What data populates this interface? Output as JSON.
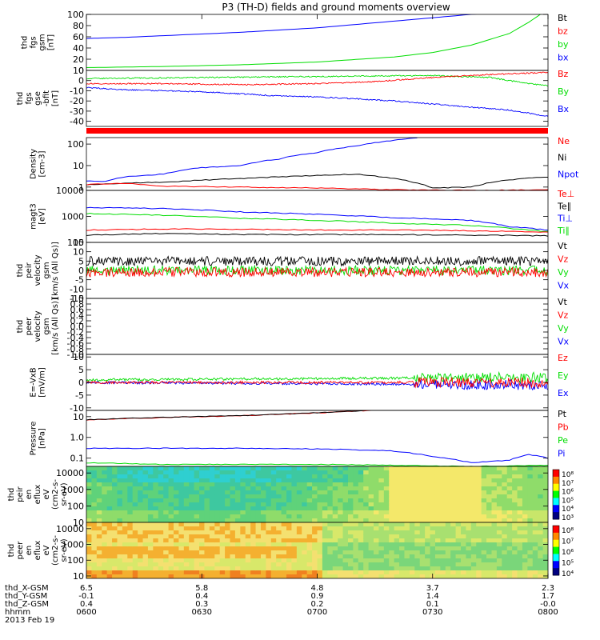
{
  "title": "P3 (TH-D) fields and ground moments overview",
  "colors": {
    "black": "#000000",
    "red": "#ff0000",
    "green": "#00dd00",
    "blue": "#0000ff"
  },
  "chart_data": {
    "type": "line",
    "x_axis": {
      "time_ticks": [
        "0600",
        "0630",
        "0700",
        "0730",
        "0800"
      ],
      "rows": [
        {
          "label": "thd_X-GSM",
          "values": [
            "6.5",
            "5.8",
            "4.8",
            "3.7",
            "2.3"
          ]
        },
        {
          "label": "thd_Y-GSM",
          "values": [
            "-0.1",
            "0.4",
            "0.9",
            "1.4",
            "1.7"
          ]
        },
        {
          "label": "thd_Z-GSM",
          "values": [
            "0.4",
            "0.3",
            "0.2",
            "0.1",
            "-0.0"
          ]
        },
        {
          "label": "hhmm",
          "values": [
            "0600",
            "0630",
            "0700",
            "0730",
            "0800"
          ]
        }
      ],
      "date": "2013 Feb 19"
    },
    "panels": [
      {
        "id": "p1",
        "ylabel_lines": [
          "thd",
          "fgs",
          "gsm",
          "[nT]"
        ],
        "scale": "linear",
        "ylim": [
          0,
          100
        ],
        "ticks": [
          {
            "v": 100,
            "l": "100"
          },
          {
            "v": 80,
            "l": "80"
          },
          {
            "v": 60,
            "l": "60"
          },
          {
            "v": 40,
            "l": "40"
          },
          {
            "v": 20,
            "l": "20"
          },
          {
            "v": 0,
            "l": "0"
          }
        ],
        "legend": [
          {
            "label": "Bt",
            "color": "#000000"
          },
          {
            "label": "bz",
            "color": "#ff0000"
          },
          {
            "label": "by",
            "color": "#00dd00"
          },
          {
            "label": "bx",
            "color": "#0000ff"
          }
        ],
        "series": [
          {
            "name": "bx",
            "color": "#0000ff",
            "x": [
              0,
              10,
              20,
              30,
              40,
              50,
              60,
              70,
              80,
              90,
              100,
              106
            ],
            "y": [
              57,
              59,
              62,
              65,
              68,
              72,
              76,
              82,
              88,
              94,
              100,
              103
            ]
          },
          {
            "name": "by",
            "color": "#00dd00",
            "x": [
              0,
              20,
              40,
              60,
              80,
              90,
              100,
              110,
              115,
              118
            ],
            "y": [
              5,
              7,
              10,
              15,
              24,
              32,
              45,
              66,
              86,
              100
            ]
          }
        ]
      },
      {
        "id": "p2",
        "ylabel_lines": [
          "thd",
          "fgs",
          "gse",
          "-bfit",
          "[nT]"
        ],
        "scale": "linear",
        "ylim": [
          -45,
          10
        ],
        "ticks": [
          {
            "v": 10,
            "l": "10"
          },
          {
            "v": 0,
            "l": "0"
          },
          {
            "v": -10,
            "l": "-10"
          },
          {
            "v": -20,
            "l": "-20"
          },
          {
            "v": -30,
            "l": "-30"
          },
          {
            "v": -40,
            "l": "-40"
          }
        ],
        "legend": [
          {
            "label": "Bz",
            "color": "#ff0000"
          },
          {
            "label": "By",
            "color": "#00dd00"
          },
          {
            "label": "Bx",
            "color": "#0000ff"
          }
        ],
        "series": [
          {
            "name": "By",
            "color": "#00dd00",
            "x": [
              0,
              30,
              60,
              90,
              105,
              110,
              115,
              120
            ],
            "y": [
              2,
              3,
              4,
              5,
              3,
              0,
              -3,
              -5
            ]
          },
          {
            "name": "Bz",
            "color": "#ff0000",
            "x": [
              0,
              20,
              40,
              60,
              75,
              90,
              105,
              120
            ],
            "y": [
              -3,
              -3,
              -4,
              -3,
              -1,
              3,
              6,
              8
            ]
          },
          {
            "name": "Bx",
            "color": "#0000ff",
            "x": [
              0,
              10,
              20,
              30,
              40,
              50,
              60,
              70,
              80,
              90,
              100,
              110,
              120
            ],
            "y": [
              -7,
              -9,
              -10,
              -11,
              -13,
              -15,
              -16,
              -18,
              -20,
              -23,
              -26,
              -29,
              -35
            ]
          }
        ]
      },
      {
        "id": "p4",
        "ylabel_lines": [
          "Density",
          "[cm-3]"
        ],
        "scale": "log",
        "ylim": [
          0.7,
          200
        ],
        "ticks": [
          {
            "v": 100,
            "l": "100"
          },
          {
            "v": 10,
            "l": "10"
          },
          {
            "v": 1,
            "l": "1"
          }
        ],
        "legend": [
          {
            "label": "Ne",
            "color": "#ff0000"
          },
          {
            "label": "Ni",
            "color": "#000000"
          },
          {
            "label": "Npot",
            "color": "#0000ff"
          }
        ],
        "series": [
          {
            "name": "Npot",
            "color": "#0000ff",
            "x": [
              0,
              5,
              10,
              15,
              20,
              30,
              40,
              50,
              60,
              70,
              80,
              86
            ],
            "y": [
              2.0,
              1.8,
              3.0,
              3.5,
              4.0,
              8,
              10,
              20,
              40,
              80,
              150,
              200
            ]
          },
          {
            "name": "Ni",
            "color": "#000000",
            "x": [
              0,
              20,
              40,
              60,
              70,
              80,
              90,
              100,
              110,
              120
            ],
            "y": [
              1.3,
              1.7,
              2.5,
              3.5,
              4.0,
              2.5,
              0.9,
              1.0,
              2.2,
              3.0
            ]
          },
          {
            "name": "Ne",
            "color": "#ff0000",
            "x": [
              0,
              10,
              20,
              40,
              60,
              80,
              100,
              120
            ],
            "y": [
              1.3,
              1.5,
              1.1,
              1.0,
              0.9,
              0.75,
              0.7,
              0.75
            ]
          }
        ]
      },
      {
        "id": "p5",
        "ylabel_lines": [
          "magt3",
          "[eV]"
        ],
        "scale": "log",
        "ylim": [
          100,
          10000
        ],
        "ticks": [
          {
            "v": 10000,
            "l": "10000"
          },
          {
            "v": 1000,
            "l": "1000"
          },
          {
            "v": 100,
            "l": "100"
          }
        ],
        "legend": [
          {
            "label": "Te⊥",
            "color": "#ff0000"
          },
          {
            "label": "Te∥",
            "color": "#000000"
          },
          {
            "label": "Ti⊥",
            "color": "#0000ff"
          },
          {
            "label": "Ti∥",
            "color": "#00dd00"
          }
        ],
        "series": [
          {
            "name": "Ti⊥",
            "color": "#0000ff",
            "x": [
              0,
              20,
              40,
              60,
              80,
              100,
              110,
              120
            ],
            "y": [
              2200,
              2000,
              1500,
              1200,
              900,
              700,
              400,
              300
            ]
          },
          {
            "name": "Ti∥",
            "color": "#00dd00",
            "x": [
              0,
              20,
              40,
              60,
              80,
              100,
              110,
              120
            ],
            "y": [
              1300,
              1100,
              850,
              700,
              550,
              450,
              350,
              260
            ]
          },
          {
            "name": "Te⊥",
            "color": "#ff0000",
            "x": [
              0,
              20,
              40,
              60,
              80,
              100,
              120
            ],
            "y": [
              300,
              330,
              320,
              300,
              300,
              280,
              250
            ]
          },
          {
            "name": "Te∥",
            "color": "#000000",
            "x": [
              0,
              20,
              40,
              60,
              80,
              100,
              120
            ],
            "y": [
              190,
              220,
              200,
              200,
              200,
              190,
              180
            ]
          }
        ]
      },
      {
        "id": "p6",
        "ylabel_lines": [
          "thd",
          "peir",
          "velocity",
          "gsm",
          "[km/s (All Qs)]"
        ],
        "scale": "linear",
        "ylim": [
          -15,
          15
        ],
        "ticks": [
          {
            "v": 15,
            "l": "15"
          },
          {
            "v": 10,
            "l": "10"
          },
          {
            "v": 5,
            "l": "5"
          },
          {
            "v": 0,
            "l": "0"
          },
          {
            "v": -5,
            "l": "-5"
          },
          {
            "v": -10,
            "l": "-10"
          },
          {
            "v": -15,
            "l": "-15"
          }
        ],
        "legend": [
          {
            "label": "Vt",
            "color": "#000000"
          },
          {
            "label": "Vz",
            "color": "#ff0000"
          },
          {
            "label": "Vy",
            "color": "#00dd00"
          },
          {
            "label": "Vx",
            "color": "#0000ff"
          }
        ],
        "series": [
          {
            "name": "Vy",
            "color": "#00dd00",
            "x": [
              0,
              120
            ],
            "y": [
              0,
              0
            ]
          },
          {
            "name": "Vt",
            "color": "#000000",
            "x": [
              0,
              120
            ],
            "y": [
              5,
              5
            ]
          },
          {
            "name": "Vz",
            "color": "#ff0000",
            "x": [
              0,
              120
            ],
            "y": [
              -1,
              -1
            ]
          }
        ]
      },
      {
        "id": "p7",
        "ylabel_lines": [
          "thd",
          "peer",
          "velocity",
          "gsm",
          "[km/s (All Qs)]"
        ],
        "scale": "linear",
        "ylim": [
          -1.0,
          1.0
        ],
        "ticks": [
          {
            "v": 1.0,
            "l": "1.0"
          },
          {
            "v": 0.8,
            "l": "0.8"
          },
          {
            "v": 0.6,
            "l": "0.6"
          },
          {
            "v": 0.4,
            "l": "0.4"
          },
          {
            "v": 0.2,
            "l": "0.2"
          },
          {
            "v": 0.0,
            "l": "0.0"
          },
          {
            "v": -0.2,
            "l": "-0.2"
          },
          {
            "v": -0.4,
            "l": "-0.4"
          },
          {
            "v": -0.6,
            "l": "-0.6"
          },
          {
            "v": -0.8,
            "l": "-0.8"
          },
          {
            "v": -1.0,
            "l": "-1.0"
          }
        ],
        "legend": [
          {
            "label": "Vt",
            "color": "#000000"
          },
          {
            "label": "Vz",
            "color": "#ff0000"
          },
          {
            "label": "Vy",
            "color": "#00dd00"
          },
          {
            "label": "Vx",
            "color": "#0000ff"
          }
        ],
        "series": []
      },
      {
        "id": "p8",
        "ylabel_lines": [
          "E=-VxB",
          "[mV/m]"
        ],
        "scale": "linear",
        "ylim": [
          -11,
          11
        ],
        "ticks": [
          {
            "v": 10,
            "l": "10"
          },
          {
            "v": 5,
            "l": "5"
          },
          {
            "v": 0,
            "l": "0"
          },
          {
            "v": -5,
            "l": "-5"
          },
          {
            "v": -10,
            "l": "-10"
          }
        ],
        "legend": [
          {
            "label": "Ez",
            "color": "#ff0000"
          },
          {
            "label": "Ey",
            "color": "#00dd00"
          },
          {
            "label": "Ex",
            "color": "#0000ff"
          }
        ],
        "series": [
          {
            "name": "Ex",
            "color": "#0000ff",
            "x": [
              0,
              120
            ],
            "y": [
              0,
              -1
            ]
          },
          {
            "name": "Ey",
            "color": "#00dd00",
            "x": [
              0,
              120
            ],
            "y": [
              1,
              2
            ]
          },
          {
            "name": "Ez",
            "color": "#ff0000",
            "x": [
              0,
              120
            ],
            "y": [
              0,
              0
            ]
          }
        ]
      },
      {
        "id": "p9",
        "ylabel_lines": [
          "Pressure",
          "[nPa]"
        ],
        "scale": "log",
        "ylim": [
          0.04,
          20
        ],
        "ticks": [
          {
            "v": 10,
            "l": "10"
          },
          {
            "v": 1,
            "l": "1.0"
          },
          {
            "v": 0.1,
            "l": "0.1"
          }
        ],
        "legend": [
          {
            "label": "Pt",
            "color": "#000000"
          },
          {
            "label": "Pb",
            "color": "#ff0000"
          },
          {
            "label": "Pe",
            "color": "#00dd00"
          },
          {
            "label": "Pi",
            "color": "#0000ff"
          }
        ],
        "series": [
          {
            "name": "Pb",
            "color": "#ff0000",
            "x": [
              0,
              20,
              40,
              60,
              74
            ],
            "y": [
              7,
              9,
              11,
              15,
              20
            ]
          },
          {
            "name": "Pt",
            "color": "#000000",
            "x": [
              0,
              20,
              40,
              60,
              74
            ],
            "y": [
              7.2,
              9.2,
              11.2,
              15.2,
              20
            ]
          },
          {
            "name": "Pi",
            "color": "#0000ff",
            "x": [
              0,
              20,
              40,
              60,
              80,
              90,
              100,
              110,
              115,
              120
            ],
            "y": [
              0.3,
              0.3,
              0.3,
              0.28,
              0.22,
              0.12,
              0.06,
              0.08,
              0.15,
              0.1
            ]
          },
          {
            "name": "Pe",
            "color": "#00dd00",
            "x": [
              0,
              20,
              40,
              60,
              80,
              100,
              120
            ],
            "y": [
              0.06,
              0.05,
              0.05,
              0.05,
              0.045,
              0.04,
              0.045
            ]
          }
        ]
      },
      {
        "id": "p10",
        "ylabel_lines": [
          "thd",
          "peir",
          "en",
          "eflux",
          "eV",
          "(cm2-s-",
          "sr-eV)"
        ],
        "scale": "log",
        "ylim": [
          10,
          25000
        ],
        "ticks": [
          {
            "v": 10000,
            "l": "10000"
          },
          {
            "v": 1000,
            "l": "1000"
          },
          {
            "v": 100,
            "l": "100"
          },
          {
            "v": 10,
            "l": "10"
          }
        ],
        "colorbar_ticks": [
          "10⁸",
          "10⁷",
          "10⁶",
          "10⁵",
          "10⁴",
          "10³"
        ],
        "series": []
      },
      {
        "id": "p11",
        "ylabel_lines": [
          "thd",
          "peer",
          "en",
          "eflux",
          "eV",
          "(cm2-s-",
          "sr-eV)"
        ],
        "scale": "log",
        "ylim": [
          7,
          25000
        ],
        "ticks": [
          {
            "v": 10000,
            "l": "10000"
          },
          {
            "v": 1000,
            "l": "1000"
          },
          {
            "v": 100,
            "l": "100"
          },
          {
            "v": 10,
            "l": "10"
          }
        ],
        "colorbar_ticks": [
          "10⁸",
          "10⁷",
          "10⁶",
          "10⁵",
          "10⁴"
        ],
        "series": []
      }
    ]
  }
}
